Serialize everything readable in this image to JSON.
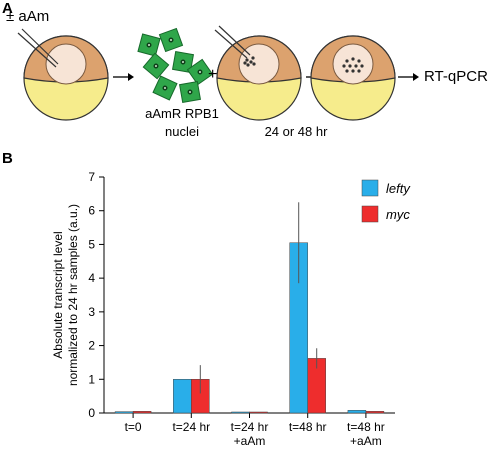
{
  "panel_a": {
    "label": "A",
    "injection_label": "± aAm",
    "nuclei_line1": "aAmR RPB1",
    "nuclei_line2": "nuclei",
    "plus": "+",
    "time_label": "24 or 48 hr",
    "readout": "RT-qPCR"
  },
  "panel_b": {
    "label": "B"
  },
  "colors": {
    "lefty": "#29aee9",
    "myc": "#ee2d2d",
    "yolk": "#f6ec8c",
    "animal": "#dca26e",
    "nucleus_cell": "#2fa64a"
  },
  "chart_data": {
    "type": "bar",
    "categories": [
      [
        "t=0"
      ],
      [
        "t=24 hr"
      ],
      [
        "t=24 hr",
        "+aAm"
      ],
      [
        "t=48 hr"
      ],
      [
        "t=48 hr",
        "+aAm"
      ]
    ],
    "series": [
      {
        "name": "lefty",
        "values": [
          0.04,
          1.0,
          0.03,
          5.05,
          0.08
        ],
        "errors": [
          0.0,
          0.0,
          0.0,
          1.2,
          0.0
        ]
      },
      {
        "name": "myc",
        "values": [
          0.05,
          1.0,
          0.03,
          1.62,
          0.05
        ],
        "errors": [
          0.0,
          0.42,
          0.0,
          0.3,
          0.0
        ]
      }
    ],
    "ylabel_line1": "Absolute transcript level",
    "ylabel_line2": "normalized to 24 hr samples (a.u.)",
    "ylim": [
      0,
      7
    ],
    "yticks": [
      0,
      1,
      2,
      3,
      4,
      5,
      6,
      7
    ],
    "legend_position": "top-right",
    "grid": false
  }
}
